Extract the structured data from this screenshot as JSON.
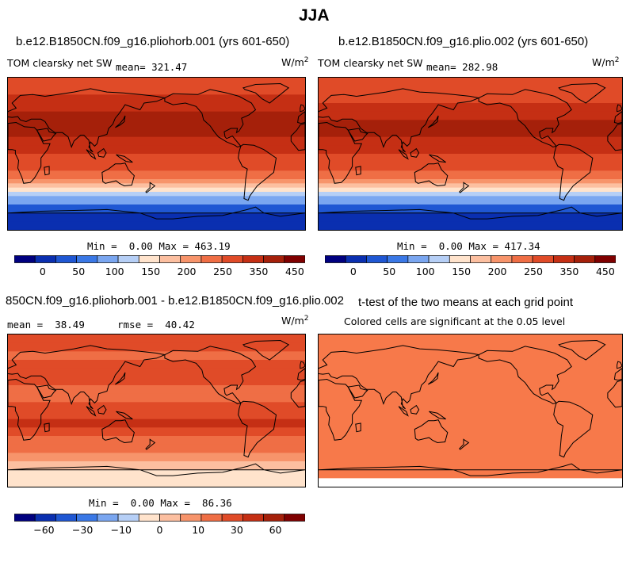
{
  "figure_title": "JJA",
  "units_label": "W/m",
  "units_exponent": "2",
  "chart_data": [
    {
      "type": "heatmap",
      "title": "b.e12.B1850CN.f09_g16.pliohorb.001 (yrs 601-650)",
      "variable": "TOM clearsky net SW",
      "mean_label": "mean=",
      "mean": "321.47",
      "min_label": "Min =",
      "min": "0.00",
      "max_label": "Max =",
      "max": "463.19",
      "colorbar_ticks": [
        "0",
        "50",
        "100",
        "150",
        "200",
        "250",
        "350",
        "450"
      ],
      "colors": [
        "#00007f",
        "#0a2fb0",
        "#1f57d3",
        "#3a78e6",
        "#7aa6f0",
        "#b6cff6",
        "#ffe3cc",
        "#fcbfa0",
        "#f7946b",
        "#ef6e45",
        "#e04b28",
        "#c52f14",
        "#a5200a",
        "#7f0000"
      ],
      "bands": [
        {
          "lat": 90,
          "c": 10
        },
        {
          "lat": 80,
          "c": 10
        },
        {
          "lat": 70,
          "c": 11
        },
        {
          "lat": 60,
          "c": 11
        },
        {
          "lat": 50,
          "c": 12
        },
        {
          "lat": 40,
          "c": 12
        },
        {
          "lat": 30,
          "c": 12
        },
        {
          "lat": 20,
          "c": 11
        },
        {
          "lat": 10,
          "c": 11
        },
        {
          "lat": 0,
          "c": 10
        },
        {
          "lat": -10,
          "c": 10
        },
        {
          "lat": -20,
          "c": 9
        },
        {
          "lat": -30,
          "c": 8
        },
        {
          "lat": -35,
          "c": 7
        },
        {
          "lat": -40,
          "c": 6
        },
        {
          "lat": -45,
          "c": 5
        },
        {
          "lat": -50,
          "c": 4
        },
        {
          "lat": -60,
          "c": 2
        },
        {
          "lat": -70,
          "c": 1
        },
        {
          "lat": -80,
          "c": 1
        }
      ]
    },
    {
      "type": "heatmap",
      "title": "b.e12.B1850CN.f09_g16.plio.002 (yrs 601-650)",
      "variable": "TOM clearsky net SW",
      "mean_label": "mean=",
      "mean": "282.98",
      "min_label": "Min =",
      "min": "0.00",
      "max_label": "Max =",
      "max": "417.34",
      "colorbar_ticks": [
        "0",
        "50",
        "100",
        "150",
        "200",
        "250",
        "350",
        "450"
      ],
      "colors": [
        "#00007f",
        "#0a2fb0",
        "#1f57d3",
        "#3a78e6",
        "#7aa6f0",
        "#b6cff6",
        "#ffe3cc",
        "#fcbfa0",
        "#f7946b",
        "#ef6e45",
        "#e04b28",
        "#c52f14",
        "#a5200a",
        "#7f0000"
      ],
      "bands": [
        {
          "lat": 90,
          "c": 10
        },
        {
          "lat": 80,
          "c": 10
        },
        {
          "lat": 70,
          "c": 10
        },
        {
          "lat": 60,
          "c": 11
        },
        {
          "lat": 50,
          "c": 11
        },
        {
          "lat": 40,
          "c": 12
        },
        {
          "lat": 30,
          "c": 12
        },
        {
          "lat": 20,
          "c": 11
        },
        {
          "lat": 10,
          "c": 11
        },
        {
          "lat": 0,
          "c": 10
        },
        {
          "lat": -10,
          "c": 10
        },
        {
          "lat": -20,
          "c": 9
        },
        {
          "lat": -30,
          "c": 8
        },
        {
          "lat": -35,
          "c": 7
        },
        {
          "lat": -40,
          "c": 6
        },
        {
          "lat": -45,
          "c": 5
        },
        {
          "lat": -50,
          "c": 4
        },
        {
          "lat": -60,
          "c": 2
        },
        {
          "lat": -70,
          "c": 1
        },
        {
          "lat": -80,
          "c": 1
        }
      ]
    },
    {
      "type": "heatmap",
      "title": "850CN.f09_g16.pliohorb.001 - b.e12.B1850CN.f09_g16.plio.002",
      "variable": "",
      "mean_label": "mean =",
      "mean": "38.49",
      "rmse_label": "rmse =",
      "rmse": "40.42",
      "min_label": "Min =",
      "min": "0.00",
      "max_label": "Max =",
      "max": "86.36",
      "colorbar_ticks": [
        "−60",
        "−30",
        "−10",
        "0",
        "10",
        "30",
        "60"
      ],
      "colors": [
        "#00007f",
        "#0a2fb0",
        "#1f57d3",
        "#3a78e6",
        "#7aa6f0",
        "#b6cff6",
        "#ffe3cc",
        "#fcbfa0",
        "#f7946b",
        "#ef6e45",
        "#e04b28",
        "#c52f14",
        "#a5200a",
        "#7f0000"
      ],
      "bands": [
        {
          "lat": 90,
          "c": 10
        },
        {
          "lat": 80,
          "c": 10
        },
        {
          "lat": 70,
          "c": 9
        },
        {
          "lat": 60,
          "c": 10
        },
        {
          "lat": 50,
          "c": 10
        },
        {
          "lat": 40,
          "c": 10
        },
        {
          "lat": 30,
          "c": 9
        },
        {
          "lat": 20,
          "c": 9
        },
        {
          "lat": 10,
          "c": 10
        },
        {
          "lat": 0,
          "c": 10
        },
        {
          "lat": -10,
          "c": 11
        },
        {
          "lat": -20,
          "c": 10
        },
        {
          "lat": -30,
          "c": 9
        },
        {
          "lat": -40,
          "c": 9
        },
        {
          "lat": -50,
          "c": 8
        },
        {
          "lat": -60,
          "c": 7
        },
        {
          "lat": -70,
          "c": 6
        }
      ]
    },
    {
      "type": "heatmap",
      "title": "t-test of the two means at each grid point",
      "subtitle": "Colored cells are significant at the 0.05 level",
      "colors": [
        "#f7794a"
      ],
      "bands": [
        {
          "lat": 90,
          "c": 0
        },
        {
          "lat": -80,
          "c": -1
        }
      ]
    }
  ]
}
